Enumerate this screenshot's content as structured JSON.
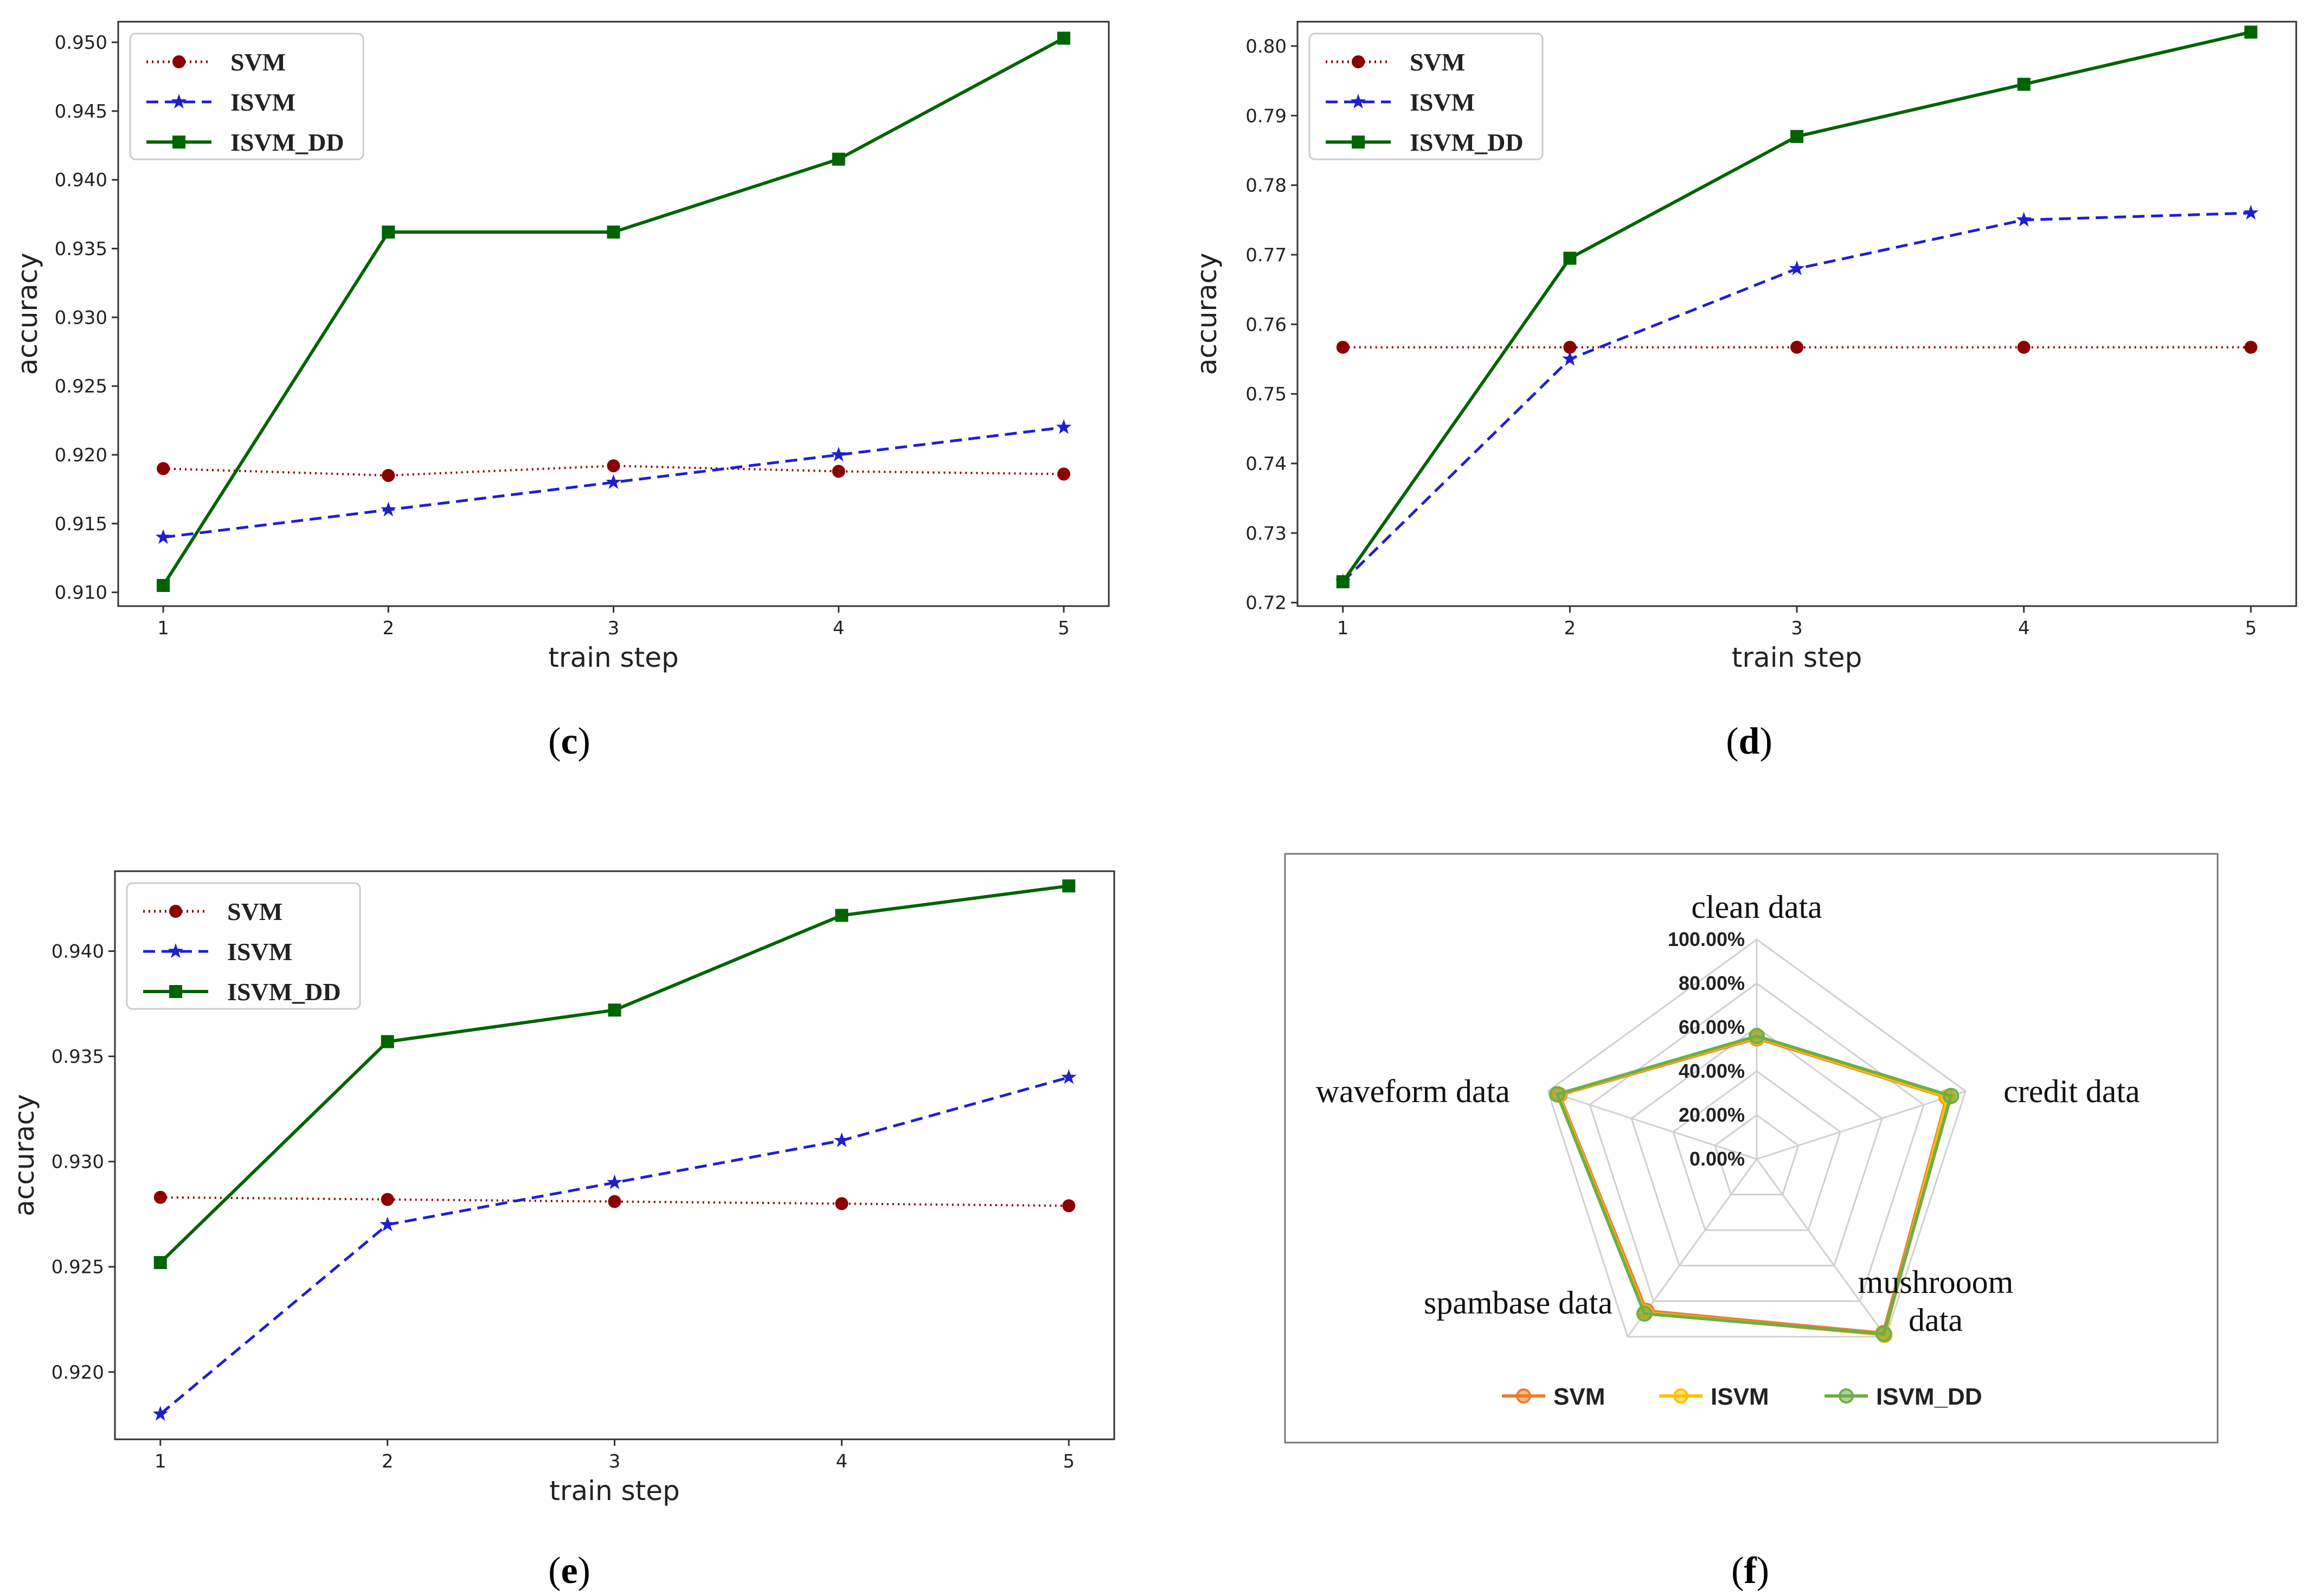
{
  "chart_data": [
    {
      "id": "c",
      "type": "line",
      "caption": "c",
      "xlabel": "train step",
      "ylabel": "accuracy",
      "x": [
        1,
        2,
        3,
        4,
        5
      ],
      "xlim": [
        0.8,
        5.2
      ],
      "ylim": [
        0.909,
        0.9515
      ],
      "yticks": [
        0.91,
        0.915,
        0.92,
        0.925,
        0.93,
        0.935,
        0.94,
        0.945,
        0.95
      ],
      "ytick_labels": [
        "0.910",
        "0.915",
        "0.920",
        "0.925",
        "0.930",
        "0.935",
        "0.940",
        "0.945",
        "0.950"
      ],
      "xtick_labels": [
        "1",
        "2",
        "3",
        "4",
        "5"
      ],
      "legend_position": "top-left",
      "series": [
        {
          "name": "SVM",
          "values": [
            0.919,
            0.9185,
            0.9192,
            0.9188,
            0.9186
          ],
          "color": "#8b0000",
          "style": "dotted",
          "marker": "circle"
        },
        {
          "name": "ISVM",
          "values": [
            0.914,
            0.916,
            0.918,
            0.92,
            0.922
          ],
          "color": "#1f1fd0",
          "style": "dashed",
          "marker": "star"
        },
        {
          "name": "ISVM_DD",
          "values": [
            0.9105,
            0.9362,
            0.9362,
            0.9415,
            0.9503
          ],
          "color": "#006400",
          "style": "solid",
          "marker": "square"
        }
      ]
    },
    {
      "id": "d",
      "type": "line",
      "caption": "d",
      "xlabel": "train step",
      "ylabel": "accuracy",
      "x": [
        1,
        2,
        3,
        4,
        5
      ],
      "xlim": [
        0.8,
        5.2
      ],
      "ylim": [
        0.7195,
        0.8035
      ],
      "yticks": [
        0.72,
        0.73,
        0.74,
        0.75,
        0.76,
        0.77,
        0.78,
        0.79,
        0.8
      ],
      "ytick_labels": [
        "0.72",
        "0.73",
        "0.74",
        "0.75",
        "0.76",
        "0.77",
        "0.78",
        "0.79",
        "0.80"
      ],
      "xtick_labels": [
        "1",
        "2",
        "3",
        "4",
        "5"
      ],
      "legend_position": "top-left",
      "series": [
        {
          "name": "SVM",
          "values": [
            0.7567,
            0.7567,
            0.7567,
            0.7567,
            0.7567
          ],
          "color": "#8b0000",
          "style": "dotted",
          "marker": "circle"
        },
        {
          "name": "ISVM",
          "values": [
            0.723,
            0.755,
            0.768,
            0.775,
            0.776
          ],
          "color": "#1f1fd0",
          "style": "dashed",
          "marker": "star"
        },
        {
          "name": "ISVM_DD",
          "values": [
            0.723,
            0.7695,
            0.787,
            0.7945,
            0.802
          ],
          "color": "#006400",
          "style": "solid",
          "marker": "square"
        }
      ]
    },
    {
      "id": "e",
      "type": "line",
      "caption": "e",
      "xlabel": "train step",
      "ylabel": "accuracy",
      "x": [
        1,
        2,
        3,
        4,
        5
      ],
      "xlim": [
        0.8,
        5.2
      ],
      "ylim": [
        0.9168,
        0.9438
      ],
      "yticks": [
        0.92,
        0.925,
        0.93,
        0.935,
        0.94
      ],
      "ytick_labels": [
        "0.920",
        "0.925",
        "0.930",
        "0.935",
        "0.940"
      ],
      "xtick_labels": [
        "1",
        "2",
        "3",
        "4",
        "5"
      ],
      "legend_position": "top-left",
      "series": [
        {
          "name": "SVM",
          "values": [
            0.9283,
            0.9282,
            0.9281,
            0.928,
            0.9279
          ],
          "color": "#8b0000",
          "style": "dotted",
          "marker": "circle"
        },
        {
          "name": "ISVM",
          "values": [
            0.918,
            0.927,
            0.929,
            0.931,
            0.934
          ],
          "color": "#1f1fd0",
          "style": "dashed",
          "marker": "star"
        },
        {
          "name": "ISVM_DD",
          "values": [
            0.9252,
            0.9357,
            0.9372,
            0.9417,
            0.9431
          ],
          "color": "#006400",
          "style": "solid",
          "marker": "square"
        }
      ]
    },
    {
      "id": "f",
      "type": "radar",
      "caption": "f",
      "categories": [
        "clean data",
        "credit data",
        "mushrooom data",
        "spambase data",
        "waveform data"
      ],
      "rlim": [
        0,
        1
      ],
      "ring_labels": [
        "0.00%",
        "20.00%",
        "40.00%",
        "60.00%",
        "80.00%",
        "100.00%"
      ],
      "legend_position": "bottom",
      "series": [
        {
          "name": "SVM",
          "values": [
            0.55,
            0.91,
            0.98,
            0.855,
            0.945
          ],
          "color": "#ed7d31"
        },
        {
          "name": "ISVM",
          "values": [
            0.555,
            0.915,
            0.99,
            0.865,
            0.95
          ],
          "color": "#ffc000"
        },
        {
          "name": "ISVM_DD",
          "values": [
            0.56,
            0.93,
            0.985,
            0.87,
            0.955
          ],
          "color": "#70ad47"
        }
      ]
    }
  ]
}
